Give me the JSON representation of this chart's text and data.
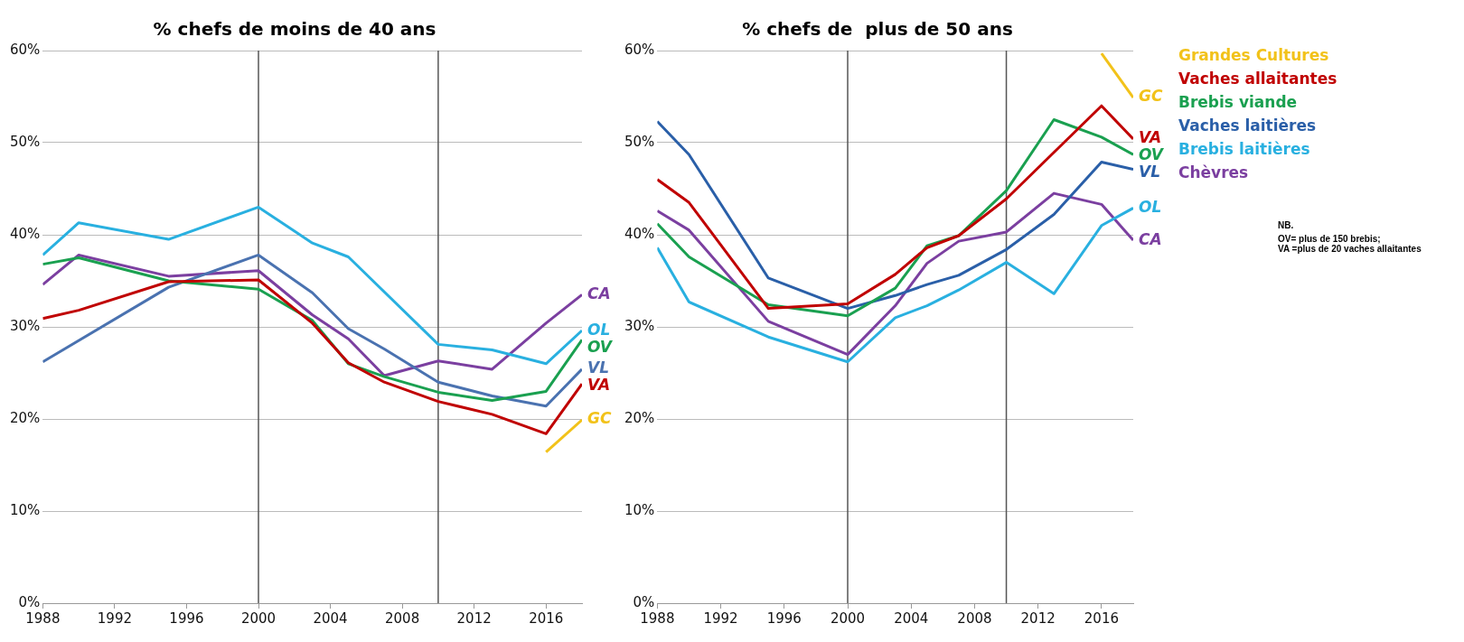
{
  "chart_data": [
    {
      "type": "line",
      "title": "% chefs de moins de 40 ans",
      "xlim": [
        1988,
        2018
      ],
      "xticks": [
        1988,
        1992,
        1996,
        2000,
        2004,
        2008,
        2012,
        2016
      ],
      "ylim": [
        0,
        60
      ],
      "yticks": [
        {
          "value": 0,
          "label": "0%"
        },
        {
          "value": 10,
          "label": "10%"
        },
        {
          "value": 20,
          "label": "20%"
        },
        {
          "value": 30,
          "label": "30%"
        },
        {
          "value": 40,
          "label": "40%"
        },
        {
          "value": 50,
          "label": "50%"
        },
        {
          "value": 60,
          "label": "60%"
        }
      ],
      "grid": "y",
      "ref_lines": [
        {
          "axis": "x",
          "value": 2000,
          "color": "#555555"
        },
        {
          "axis": "x",
          "value": 2010,
          "color": "#555555"
        }
      ],
      "series": [
        {
          "color": "#f2c21a",
          "x": [
            2016,
            2018
          ],
          "values": [
            16.4,
            19.9
          ]
        },
        {
          "color": "#c00000",
          "x": [
            1988,
            1990,
            1995,
            2000,
            2003,
            2005,
            2007,
            2010,
            2013,
            2016,
            2018
          ],
          "values": [
            30.9,
            31.8,
            34.9,
            35.1,
            30.4,
            26.1,
            24.0,
            21.9,
            20.5,
            18.4,
            23.8
          ]
        },
        {
          "color": "#1aa050",
          "x": [
            1988,
            1990,
            1995,
            2000,
            2003,
            2005,
            2007,
            2010,
            2013,
            2016,
            2018
          ],
          "values": [
            36.8,
            37.5,
            35.0,
            34.1,
            30.7,
            26.0,
            24.6,
            22.9,
            22.0,
            23.0,
            28.6
          ]
        },
        {
          "color": "#4a72b0",
          "x": [
            1988,
            1995,
            2000,
            2003,
            2005,
            2007,
            2010,
            2013,
            2016,
            2018
          ],
          "values": [
            26.2,
            34.3,
            37.8,
            33.7,
            29.8,
            27.6,
            24.0,
            22.5,
            21.4,
            25.4
          ]
        },
        {
          "color": "#29b0e0",
          "x": [
            1988,
            1990,
            1995,
            2000,
            2003,
            2005,
            2010,
            2013,
            2016,
            2018
          ],
          "values": [
            37.8,
            41.3,
            39.5,
            43.0,
            39.1,
            37.6,
            28.1,
            27.5,
            26.0,
            29.6
          ]
        },
        {
          "color": "#7b3fa0",
          "x": [
            1988,
            1990,
            1995,
            2000,
            2003,
            2005,
            2007,
            2010,
            2013,
            2016,
            2018
          ],
          "values": [
            34.6,
            37.8,
            35.5,
            36.1,
            31.3,
            28.7,
            24.7,
            26.3,
            25.4,
            30.4,
            33.5
          ]
        }
      ],
      "annotations": [
        "GC",
        "VA",
        "OV",
        "VL",
        "OL",
        "CA"
      ]
    },
    {
      "type": "line",
      "title": "% chefs de  plus de 50 ans",
      "xlim": [
        1988,
        2018
      ],
      "xticks": [
        1988,
        1992,
        1996,
        2000,
        2004,
        2008,
        2012,
        2016
      ],
      "ylim": [
        0,
        60
      ],
      "yticks": [
        {
          "value": 0,
          "label": "0%"
        },
        {
          "value": 10,
          "label": "10%"
        },
        {
          "value": 20,
          "label": "20%"
        },
        {
          "value": 30,
          "label": "30%"
        },
        {
          "value": 40,
          "label": "40%"
        },
        {
          "value": 50,
          "label": "50%"
        },
        {
          "value": 60,
          "label": "60%"
        }
      ],
      "grid": "y",
      "legend": "right",
      "ref_lines": [
        {
          "axis": "x",
          "value": 2000,
          "color": "#555555"
        },
        {
          "axis": "x",
          "value": 2010,
          "color": "#555555"
        }
      ],
      "series": [
        {
          "name": "Grandes Cultures",
          "color": "#f2c21a",
          "x": [
            2016,
            2018
          ],
          "values": [
            59.7,
            54.9
          ]
        },
        {
          "name": "Vaches allaitantes",
          "color": "#c00000",
          "x": [
            1988,
            1990,
            1995,
            2000,
            2003,
            2005,
            2007,
            2010,
            2016,
            2018
          ],
          "values": [
            46.0,
            43.5,
            32.0,
            32.5,
            35.7,
            38.6,
            39.9,
            43.9,
            54.0,
            50.4
          ]
        },
        {
          "name": "Brebis viande",
          "color": "#1aa050",
          "x": [
            1988,
            1990,
            1995,
            2000,
            2003,
            2005,
            2007,
            2010,
            2013,
            2016,
            2018
          ],
          "values": [
            41.2,
            37.6,
            32.4,
            31.2,
            34.2,
            38.8,
            39.9,
            44.8,
            52.5,
            50.6,
            48.7
          ]
        },
        {
          "name": "Vaches laitières",
          "color": "#2a5fa8",
          "x": [
            1988,
            1990,
            1995,
            2000,
            2003,
            2005,
            2007,
            2010,
            2013,
            2016,
            2018
          ],
          "values": [
            52.3,
            48.7,
            35.3,
            32.0,
            33.4,
            34.6,
            35.6,
            38.4,
            42.2,
            47.9,
            47.1
          ]
        },
        {
          "name": "Brebis laitières",
          "color": "#29b0e0",
          "x": [
            1988,
            1990,
            1995,
            2000,
            2003,
            2005,
            2007,
            2010,
            2013,
            2016,
            2018
          ],
          "values": [
            38.6,
            32.7,
            28.9,
            26.2,
            31.0,
            32.3,
            34.0,
            37.0,
            33.6,
            41.0,
            42.9
          ]
        },
        {
          "name": "Chèvres",
          "color": "#7b3fa0",
          "x": [
            1988,
            1990,
            1995,
            2000,
            2003,
            2005,
            2007,
            2010,
            2013,
            2016,
            2018
          ],
          "values": [
            42.6,
            40.5,
            30.6,
            27.0,
            32.3,
            36.9,
            39.3,
            40.3,
            44.5,
            43.3,
            39.4
          ]
        }
      ],
      "annotations": [
        "GC",
        "VA",
        "OV",
        "VL",
        "OL",
        "CA",
        "NB.",
        "OV= plus de 150 brebis;",
        "VA =plus de 20 vaches allaitantes"
      ]
    }
  ]
}
